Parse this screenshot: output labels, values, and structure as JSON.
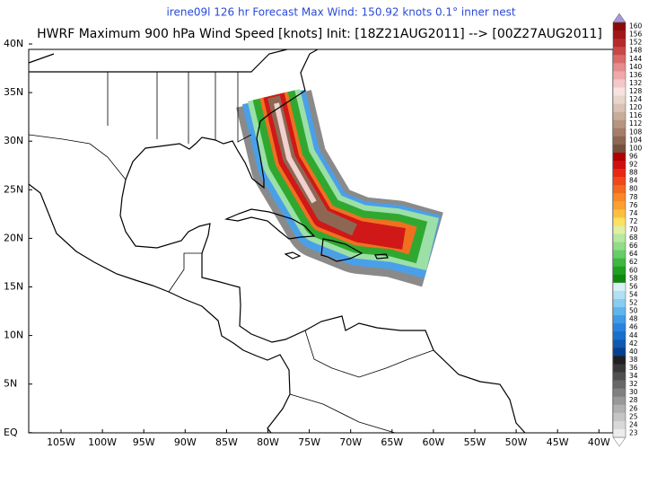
{
  "header": {
    "subtitle": "irene09l 126 hr Forecast Max Wind: 150.92 knots 0.1° inner nest",
    "title": "HWRF Maximum 900 hPa Wind Speed [knots] Init: [18Z21AUG2011] --> [00Z27AUG2011]"
  },
  "map": {
    "lat_labels": [
      "40N",
      "35N",
      "30N",
      "25N",
      "20N",
      "15N",
      "10N",
      "5N",
      "EQ"
    ],
    "lon_labels": [
      "105W",
      "100W",
      "95W",
      "90W",
      "85W",
      "80W",
      "75W",
      "70W",
      "65W",
      "60W",
      "55W",
      "50W",
      "45W",
      "40W"
    ]
  },
  "colorbar": {
    "levels": [
      160,
      156,
      152,
      148,
      144,
      140,
      136,
      132,
      128,
      124,
      120,
      116,
      112,
      108,
      104,
      100,
      96,
      92,
      88,
      84,
      80,
      78,
      76,
      74,
      72,
      70,
      68,
      66,
      64,
      62,
      60,
      58,
      56,
      54,
      52,
      50,
      48,
      46,
      44,
      42,
      40,
      38,
      36,
      34,
      32,
      30,
      28,
      26,
      25,
      24,
      23
    ],
    "colors": [
      "#8b0a0a",
      "#a01818",
      "#b52a2a",
      "#c84848",
      "#d86a6a",
      "#e58c8c",
      "#eeaaaa",
      "#f4c8c8",
      "#f7e2e0",
      "#e8d6cc",
      "#d9c2b4",
      "#c9ac9a",
      "#b89580",
      "#a47e68",
      "#8e6752",
      "#76503e",
      "#b00000",
      "#d01010",
      "#e82810",
      "#f04818",
      "#f46820",
      "#f88828",
      "#fca030",
      "#fcc040",
      "#fce060",
      "#e0f0a0",
      "#b8e8a0",
      "#90dc88",
      "#68cc68",
      "#40b840",
      "#20a020",
      "#108810",
      "#d8f0f8",
      "#b0e0f4",
      "#88ccf0",
      "#60b4ec",
      "#409ce4",
      "#2884dc",
      "#1870cc",
      "#1058b0",
      "#084090",
      "#202020",
      "#383838",
      "#505050",
      "#686868",
      "#808080",
      "#989898",
      "#b0b0b0",
      "#c4c4c4",
      "#d8d8d8",
      "#ececec"
    ]
  }
}
